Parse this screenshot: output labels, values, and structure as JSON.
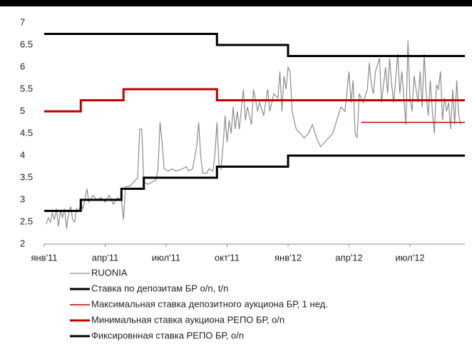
{
  "chart_data": {
    "type": "line",
    "xlim": [
      0,
      20.7
    ],
    "xticks": [
      {
        "value": 0,
        "label": "янв'11"
      },
      {
        "value": 3,
        "label": "апр'11"
      },
      {
        "value": 6,
        "label": "июл'11"
      },
      {
        "value": 9,
        "label": "окт'11"
      },
      {
        "value": 12,
        "label": "янв'12"
      },
      {
        "value": 15,
        "label": "апр'12"
      },
      {
        "value": 18,
        "label": "июл'12"
      }
    ],
    "ylim": [
      2,
      7
    ],
    "yticks": [
      2,
      2.5,
      3,
      3.5,
      4,
      4.5,
      5,
      5.5,
      6,
      6.5,
      7
    ],
    "grid": false,
    "legend": "bottom",
    "series": [
      {
        "name": "RUONIA",
        "color": "#8c8c8c",
        "line_width": 1.2,
        "x": [
          0.1,
          0.2,
          0.3,
          0.4,
          0.5,
          0.6,
          0.7,
          0.8,
          0.9,
          1.0,
          1.1,
          1.2,
          1.3,
          1.4,
          1.5,
          1.6,
          1.7,
          1.8,
          1.9,
          2.0,
          2.1,
          2.2,
          2.4,
          2.6,
          2.8,
          3.0,
          3.2,
          3.4,
          3.6,
          3.8,
          3.9,
          4.0,
          4.2,
          4.4,
          4.6,
          4.7,
          4.8,
          4.9,
          5.1,
          5.3,
          5.5,
          5.6,
          5.7,
          5.8,
          5.9,
          6.1,
          6.3,
          6.5,
          6.8,
          7.0,
          7.1,
          7.3,
          7.5,
          7.6,
          7.7,
          7.8,
          8.0,
          8.1,
          8.3,
          8.4,
          8.5,
          8.6,
          8.7,
          8.8,
          8.9,
          9.0,
          9.1,
          9.2,
          9.3,
          9.4,
          9.5,
          9.6,
          9.8,
          9.9,
          10.0,
          10.2,
          10.3,
          10.5,
          10.6,
          10.8,
          11.0,
          11.1,
          11.3,
          11.5,
          11.6,
          11.7,
          11.8,
          11.9,
          12.0,
          12.1,
          12.2,
          12.4,
          12.6,
          12.8,
          13.0,
          13.2,
          13.4,
          13.6,
          13.8,
          14.0,
          14.2,
          14.4,
          14.6,
          14.8,
          15.0,
          15.1,
          15.2,
          15.3,
          15.4,
          15.5,
          15.7,
          15.9,
          16.0,
          16.1,
          16.2,
          16.3,
          16.5,
          16.6,
          16.8,
          16.9,
          17.0,
          17.1,
          17.2,
          17.4,
          17.5,
          17.6,
          17.8,
          17.9,
          18.0,
          18.1,
          18.2,
          18.4,
          18.5,
          18.6,
          18.7,
          18.8,
          18.9,
          19.0,
          19.1,
          19.2,
          19.3,
          19.4,
          19.5,
          19.6,
          19.7,
          19.8,
          19.9,
          20.0,
          20.1,
          20.2,
          20.3,
          20.4,
          20.5
        ],
        "values": [
          2.45,
          2.6,
          2.5,
          2.7,
          2.55,
          2.8,
          2.4,
          2.75,
          2.6,
          2.8,
          2.35,
          2.7,
          2.85,
          2.55,
          2.5,
          2.8,
          2.75,
          2.9,
          2.8,
          3.0,
          3.25,
          2.95,
          3.1,
          3.0,
          3.05,
          2.95,
          3.1,
          2.9,
          3.05,
          3.0,
          2.55,
          3.3,
          3.3,
          3.4,
          3.5,
          4.6,
          4.6,
          3.4,
          3.35,
          3.4,
          3.45,
          3.7,
          4.75,
          4.3,
          3.7,
          3.65,
          3.7,
          3.65,
          3.7,
          3.75,
          3.65,
          3.7,
          4.2,
          4.75,
          4.0,
          3.6,
          3.6,
          3.7,
          3.65,
          4.0,
          4.75,
          3.8,
          3.7,
          4.2,
          4.9,
          4.3,
          4.8,
          4.5,
          5.1,
          4.6,
          5.0,
          4.6,
          5.5,
          4.8,
          5.1,
          4.7,
          5.5,
          5.0,
          5.2,
          4.9,
          5.5,
          5.0,
          5.4,
          5.3,
          5.9,
          5.0,
          5.8,
          5.5,
          6.0,
          5.9,
          5.0,
          4.6,
          4.5,
          4.4,
          4.5,
          4.7,
          4.4,
          4.2,
          4.3,
          4.4,
          4.5,
          4.8,
          5.1,
          5.0,
          5.9,
          5.2,
          5.7,
          4.5,
          4.4,
          5.4,
          5.2,
          5.5,
          6.1,
          5.6,
          5.4,
          5.9,
          6.2,
          5.2,
          6.0,
          5.4,
          6.2,
          5.6,
          5.2,
          6.3,
          5.4,
          5.9,
          4.7,
          6.6,
          5.3,
          5.0,
          5.8,
          5.2,
          5.9,
          5.1,
          6.3,
          5.4,
          4.9,
          5.7,
          5.0,
          4.5,
          5.6,
          5.5,
          5.9,
          4.8,
          5.3,
          5.0,
          5.2,
          4.6,
          5.5,
          4.7,
          5.7,
          4.9,
          4.7
        ]
      },
      {
        "name": "Ставка по депозитам БР o/n, t/n",
        "color": "#000000",
        "line_width": 3,
        "x": [
          0,
          1.8,
          1.8,
          3.8,
          3.8,
          4.9,
          4.9,
          8.5,
          8.5,
          12.0,
          12.0,
          20.7
        ],
        "values": [
          2.75,
          2.75,
          3.0,
          3.0,
          3.25,
          3.25,
          3.5,
          3.5,
          3.75,
          3.75,
          4.0,
          4.0
        ]
      },
      {
        "name": "Максимальная ставка депозитного аукциона БР, 1 нед.",
        "color": "#c00000",
        "line_width": 1.5,
        "x": [
          15.6,
          20.7
        ],
        "values": [
          4.75,
          4.75
        ]
      },
      {
        "name": "Минимальная ставка аукциона РЕПО БР, o/n",
        "color": "#c00000",
        "line_width": 3,
        "x": [
          0,
          1.8,
          1.8,
          3.9,
          3.9,
          8.5,
          8.5,
          20.7
        ],
        "values": [
          5.0,
          5.0,
          5.25,
          5.25,
          5.5,
          5.5,
          5.25,
          5.25
        ]
      },
      {
        "name": "Фиксировнная ставка РЕПО БР, o/n",
        "color": "#000000",
        "line_width": 3,
        "x": [
          0,
          8.5,
          8.5,
          12.0,
          12.0,
          20.7
        ],
        "values": [
          6.75,
          6.75,
          6.5,
          6.5,
          6.25,
          6.25
        ]
      }
    ]
  }
}
